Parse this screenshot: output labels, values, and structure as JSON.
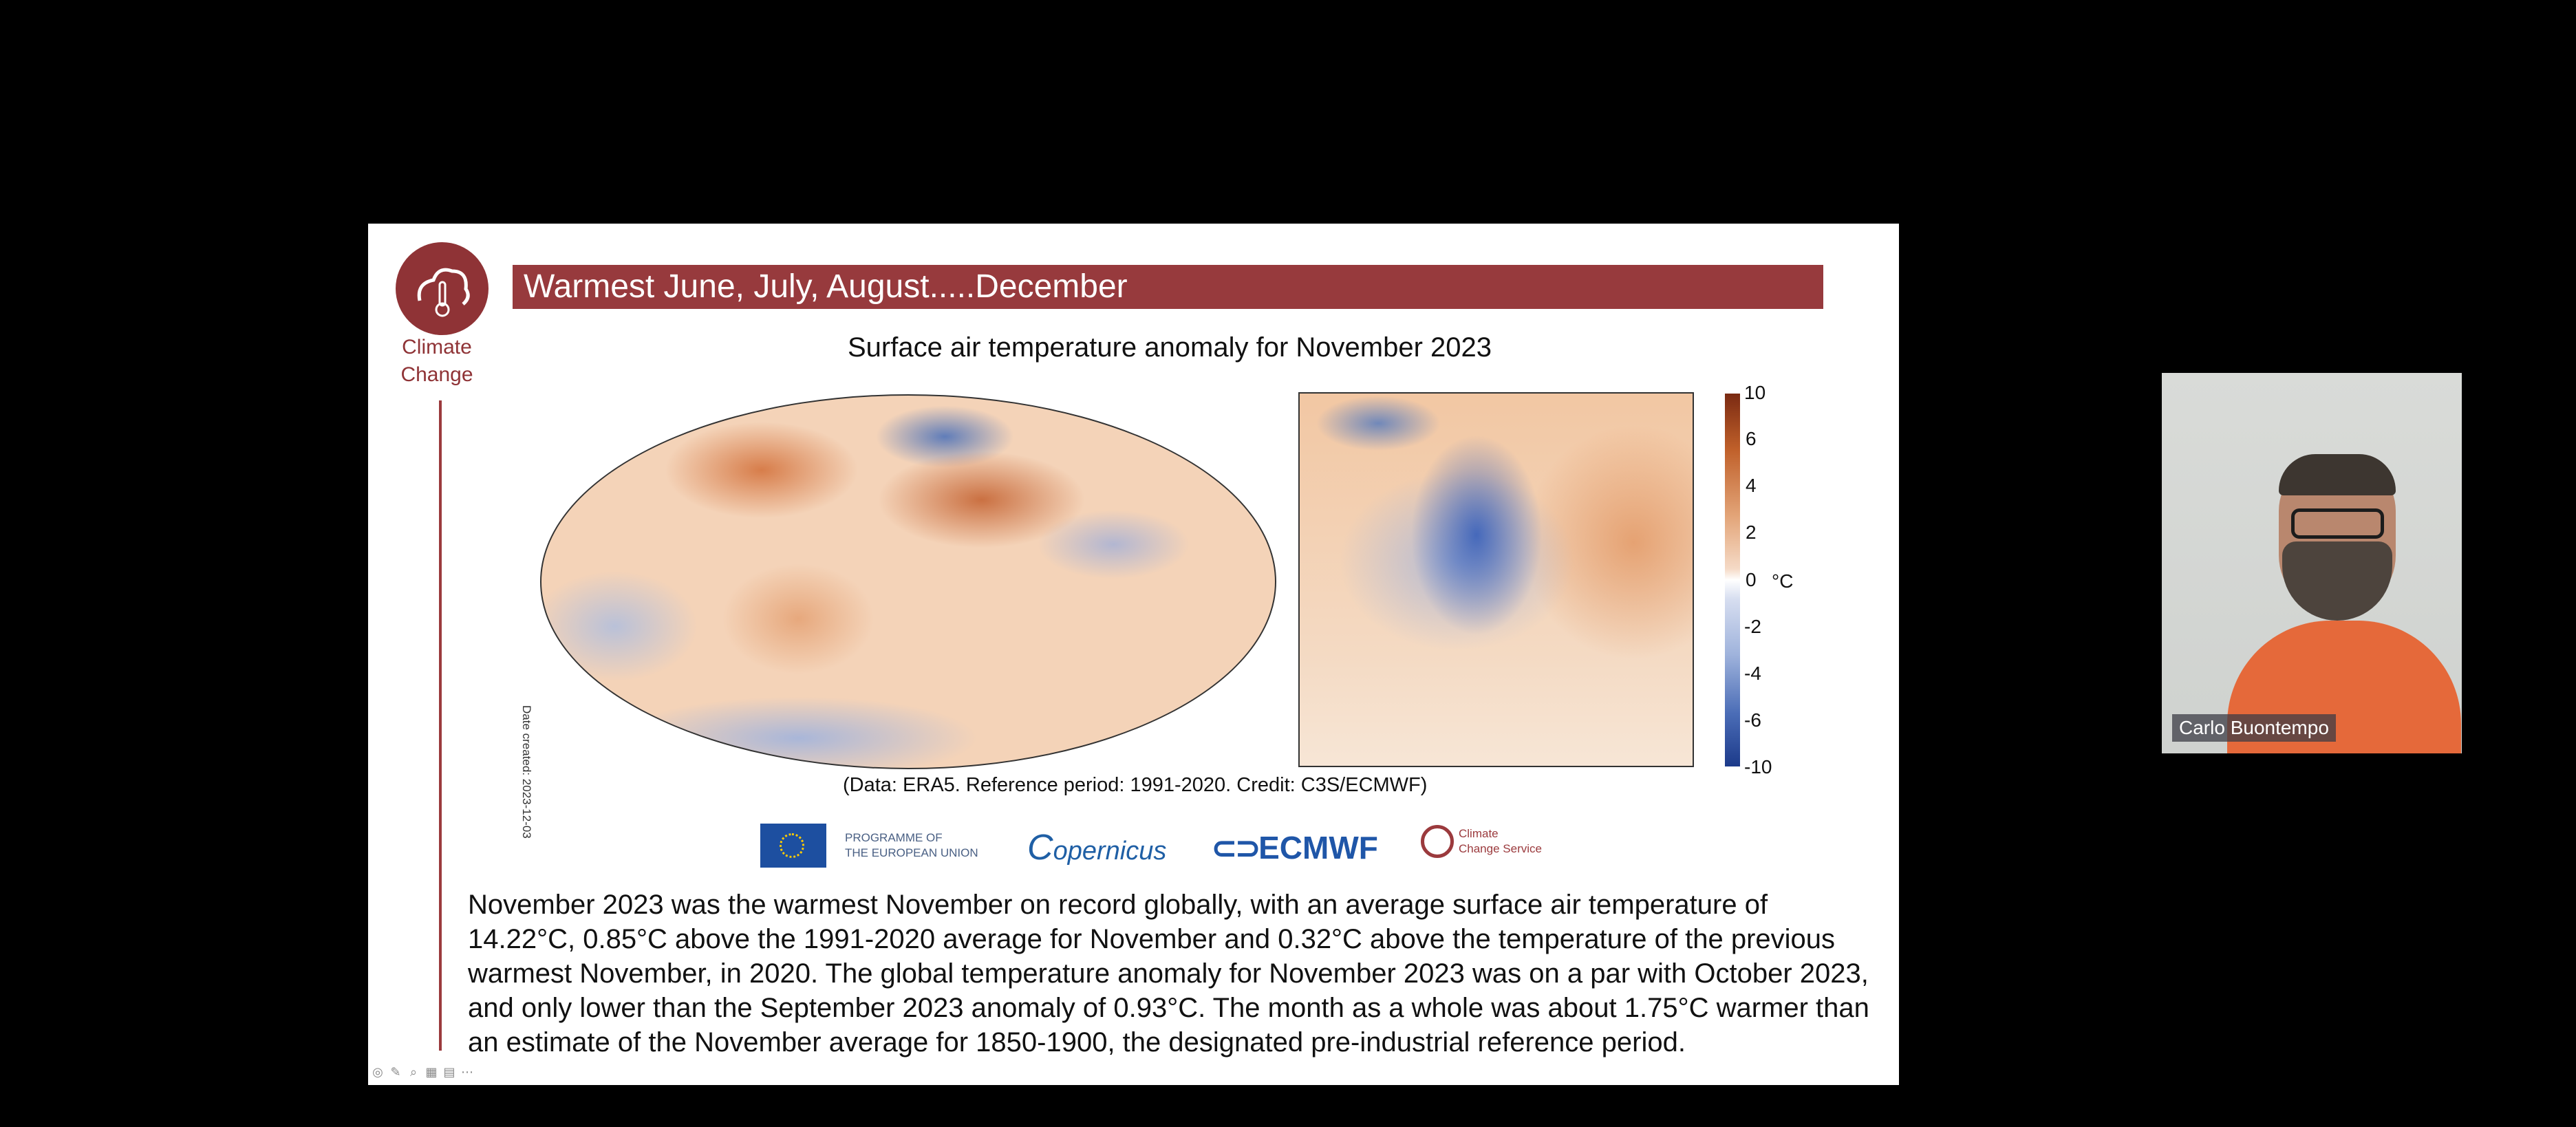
{
  "slide": {
    "logo_text_line1": "Climate",
    "logo_text_line2": "Change",
    "title": "Warmest June, July, August.....December",
    "map_title": "Surface air temperature anomaly for November 2023",
    "date_created": "Date created: 2023-12-03",
    "data_note": "(Data: ERA5.  Reference period: 1991-2020.  Credit: C3S/ECMWF)",
    "colorbar": {
      "ticks": [
        "10",
        "6",
        "4",
        "2",
        "0",
        "-2",
        "-4",
        "-6",
        "-10"
      ],
      "unit": "°C"
    },
    "logos": {
      "eu_text_line1": "PROGRAMME OF",
      "eu_text_line2": "THE EUROPEAN UNION",
      "copernicus": "opernicus",
      "ecmwf": "ECMWF",
      "ccs_line1": "Climate",
      "ccs_line2": "Change Service"
    },
    "body_text": "November 2023 was the warmest November on record globally, with an average surface air temperature of 14.22°C, 0.85°C above the 1991-2020 average for November and 0.32°C above the temperature of the previous warmest November, in 2020. The global temperature anomaly for November 2023 was on a par with October 2023, and only lower than the September 2023 anomaly of 0.93°C. The month as a whole was about 1.75°C warmer than an estimate of the November average for 1850-1900, the designated pre-industrial reference period."
  },
  "toolbar": [
    "toolbar-icon-1",
    "pen-icon",
    "zoom-icon",
    "grid-icon",
    "slides-icon",
    "more-icon"
  ],
  "video": {
    "participant_name": "Carlo Buontempo"
  },
  "colors": {
    "brand_red": "#973a3d",
    "background": "#000000"
  }
}
